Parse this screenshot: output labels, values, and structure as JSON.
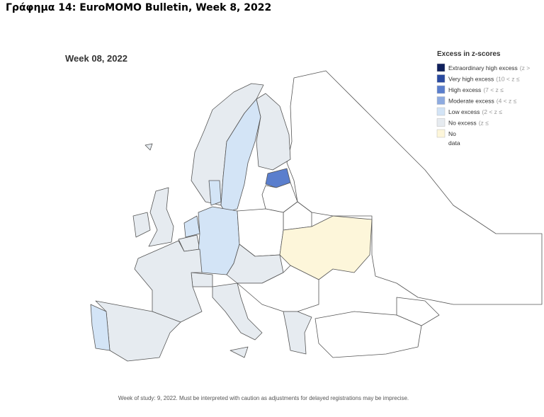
{
  "header": {
    "title": "Γράφημα 14: EuroMOMO Bulletin, Week 8, 2022"
  },
  "map": {
    "title": "Week 08, 2022",
    "footnote": "Week of study: 9, 2022. Must be interpreted with caution as adjustments for delayed registrations may be imprecise.",
    "no_level_color": "#ffffff"
  },
  "legend": {
    "title": "Excess in z-scores",
    "items": [
      {
        "name": "Extraordinary high excess",
        "range": "(z >",
        "color": "#0e1f5b"
      },
      {
        "name": "Very high excess",
        "range": "(10 < z ≤",
        "color": "#2a4aa0"
      },
      {
        "name": "High excess",
        "range": "(7 < z ≤",
        "color": "#5a7ecd"
      },
      {
        "name": "Moderate excess",
        "range": "(4 < z ≤",
        "color": "#8eabe0"
      },
      {
        "name": "Low excess",
        "range": "(2 < z ≤",
        "color": "#d3e4f6"
      },
      {
        "name": "No excess",
        "range": "(z ≤",
        "color": "#e6ebf0"
      },
      {
        "name": "No",
        "range": "data",
        "color": "#fdf6da"
      }
    ]
  }
}
